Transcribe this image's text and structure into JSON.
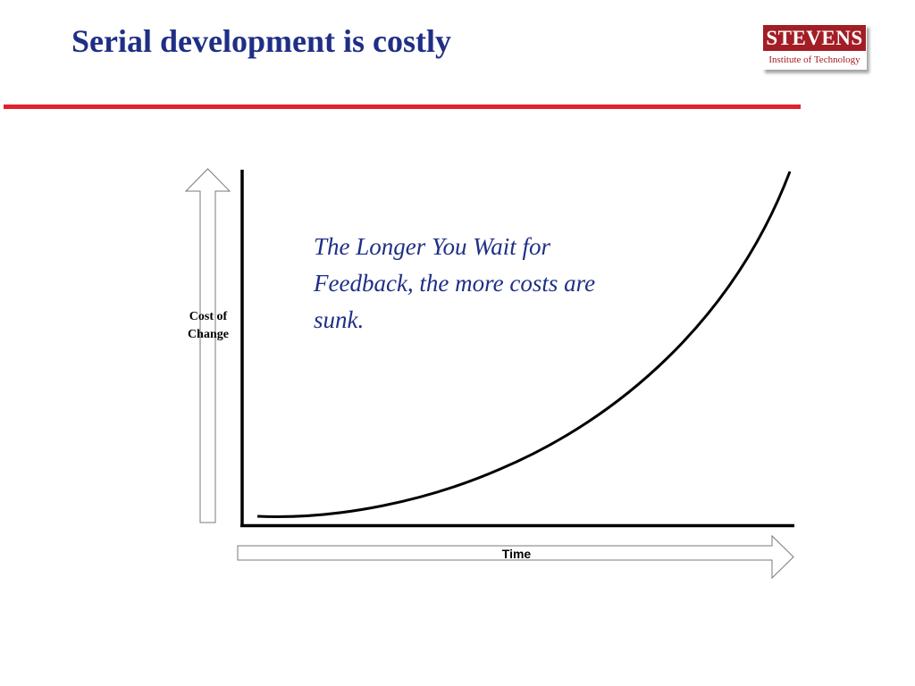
{
  "slide": {
    "title": "Serial development is costly"
  },
  "logo": {
    "name": "STEVENS",
    "subtitle": "Institute of Technology"
  },
  "diagram": {
    "annotation": "The Longer You Wait for Feedback, the more costs are sunk.",
    "y_axis_label": "Cost of Change",
    "x_axis_label": "Time"
  },
  "colors": {
    "title": "#1f2f86",
    "rule": "#e0222f",
    "logo_red": "#a31d25",
    "axis": "#000000"
  }
}
